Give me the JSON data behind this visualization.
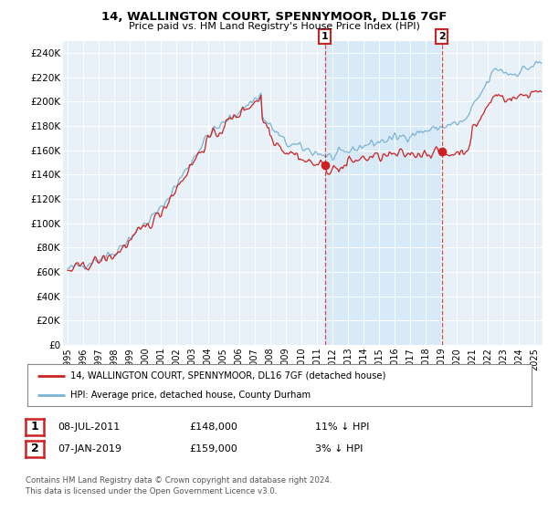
{
  "title": "14, WALLINGTON COURT, SPENNYMOOR, DL16 7GF",
  "subtitle": "Price paid vs. HM Land Registry's House Price Index (HPI)",
  "legend_line1": "14, WALLINGTON COURT, SPENNYMOOR, DL16 7GF (detached house)",
  "legend_line2": "HPI: Average price, detached house, County Durham",
  "annotation1_date": "08-JUL-2011",
  "annotation1_price": "£148,000",
  "annotation1_hpi": "11% ↓ HPI",
  "annotation1_year": 2011.52,
  "annotation1_value": 148000,
  "annotation2_date": "07-JAN-2019",
  "annotation2_price": "£159,000",
  "annotation2_hpi": "3% ↓ HPI",
  "annotation2_year": 2019.02,
  "annotation2_value": 159000,
  "footer": "Contains HM Land Registry data © Crown copyright and database right 2024.\nThis data is licensed under the Open Government Licence v3.0.",
  "hpi_color": "#7ab3d4",
  "price_color": "#cc2222",
  "vline_color": "#cc2222",
  "shade_color": "#d8eaf7",
  "background_color": "#e8f0f8",
  "ylim": [
    0,
    250000
  ],
  "ytick_max": 240000,
  "xlim_start": 1994.7,
  "xlim_end": 2025.5
}
